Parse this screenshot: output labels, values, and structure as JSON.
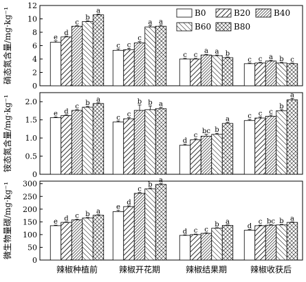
{
  "chart_data": {
    "type": "bar",
    "categories": [
      "辣椒种植前",
      "辣椒开花期",
      "辣椒结果期",
      "辣椒收获后"
    ],
    "legend": [
      "B0",
      "B20",
      "B40",
      "B60",
      "B80"
    ],
    "legend_placement": "top-right of first panel",
    "series_styles": {
      "B0": "white",
      "B20": "diagonal-hatch-right",
      "B40": "diagonal-hatch-dense",
      "B60": "diagonal-hatch-left",
      "B80": "cross-hatch"
    },
    "panels": [
      {
        "ylabel": "硝态氮含量/mg·kg⁻¹",
        "ylim": [
          0,
          12
        ],
        "yticks": [
          "0",
          "2",
          "4",
          "6",
          "8",
          "10",
          "12"
        ],
        "yticks_values": [
          0,
          2,
          4,
          6,
          8,
          10,
          12
        ],
        "values": [
          [
            6.5,
            7.3,
            8.9,
            9.6,
            10.6
          ],
          [
            5.3,
            5.4,
            6.4,
            8.8,
            8.9
          ],
          [
            4.0,
            4.0,
            4.6,
            4.5,
            4.2
          ],
          [
            3.3,
            3.4,
            3.7,
            3.4,
            3.3
          ]
        ],
        "errors": [
          [
            0.2,
            0.1,
            0.1,
            0.1,
            0.1
          ],
          [
            0.2,
            0.2,
            0.2,
            0.2,
            0.2
          ],
          [
            0.1,
            0.1,
            0.1,
            0.1,
            0.1
          ],
          [
            0.1,
            0.1,
            0.1,
            0.1,
            0.1
          ]
        ],
        "letters": [
          [
            "e",
            "d",
            "c",
            "b",
            "a"
          ],
          [
            "c",
            "c",
            "c",
            "a",
            "a"
          ],
          [
            "c",
            "c",
            "a",
            "a",
            "b"
          ],
          [
            "c",
            "c",
            "a",
            "b",
            "c"
          ]
        ]
      },
      {
        "ylabel": "铵态氮含量/mg·kg⁻¹",
        "ylim": [
          0,
          2.25
        ],
        "yticks": [
          "0",
          "0.5",
          "1.0",
          "1.5",
          "2.0"
        ],
        "yticks_values": [
          0,
          0.5,
          1.0,
          1.5,
          2.0
        ],
        "values": [
          [
            1.56,
            1.62,
            1.76,
            1.85,
            1.95
          ],
          [
            1.44,
            1.53,
            1.76,
            1.78,
            1.81
          ],
          [
            0.8,
            0.95,
            1.05,
            1.1,
            1.4
          ],
          [
            1.48,
            1.55,
            1.6,
            1.75,
            2.05
          ]
        ],
        "errors": [
          [
            0.02,
            0.02,
            0.02,
            0.02,
            0.02
          ],
          [
            0.03,
            0.03,
            0.15,
            0.1,
            0.03
          ],
          [
            0.03,
            0.03,
            0.05,
            0.03,
            0.03
          ],
          [
            0.03,
            0.03,
            0.03,
            0.03,
            0.04
          ]
        ],
        "letters": [
          [
            "e",
            "d",
            "c",
            "b",
            "a"
          ],
          [
            "c",
            "c",
            "b",
            "b",
            "a"
          ],
          [
            "d",
            "c",
            "bc",
            "b",
            "a"
          ],
          [
            "c",
            "c",
            "c",
            "b",
            "a"
          ]
        ]
      },
      {
        "ylabel": "微生物量碳/mg·kg⁻¹",
        "ylim": [
          0,
          310
        ],
        "yticks": [
          "0",
          "50",
          "100",
          "150",
          "200",
          "250",
          "300"
        ],
        "yticks_values": [
          0,
          50,
          100,
          150,
          200,
          250,
          300
        ],
        "values": [
          [
            135,
            148,
            158,
            165,
            176
          ],
          [
            190,
            210,
            262,
            280,
            297
          ],
          [
            97,
            100,
            105,
            125,
            136
          ],
          [
            117,
            135,
            137,
            138,
            148
          ]
        ],
        "errors": [
          [
            2,
            2,
            2,
            2,
            2
          ],
          [
            5,
            3,
            3,
            3,
            3
          ],
          [
            2,
            2,
            2,
            2,
            2
          ],
          [
            3,
            2,
            2,
            2,
            2
          ]
        ],
        "letters": [
          [
            "e",
            "d",
            "c",
            "b",
            "a"
          ],
          [
            "e",
            "d",
            "c",
            "b",
            "a"
          ],
          [
            "d",
            "c",
            "c",
            "b",
            "a"
          ],
          [
            "d",
            "c",
            "bc",
            "b",
            "a"
          ]
        ]
      }
    ]
  }
}
